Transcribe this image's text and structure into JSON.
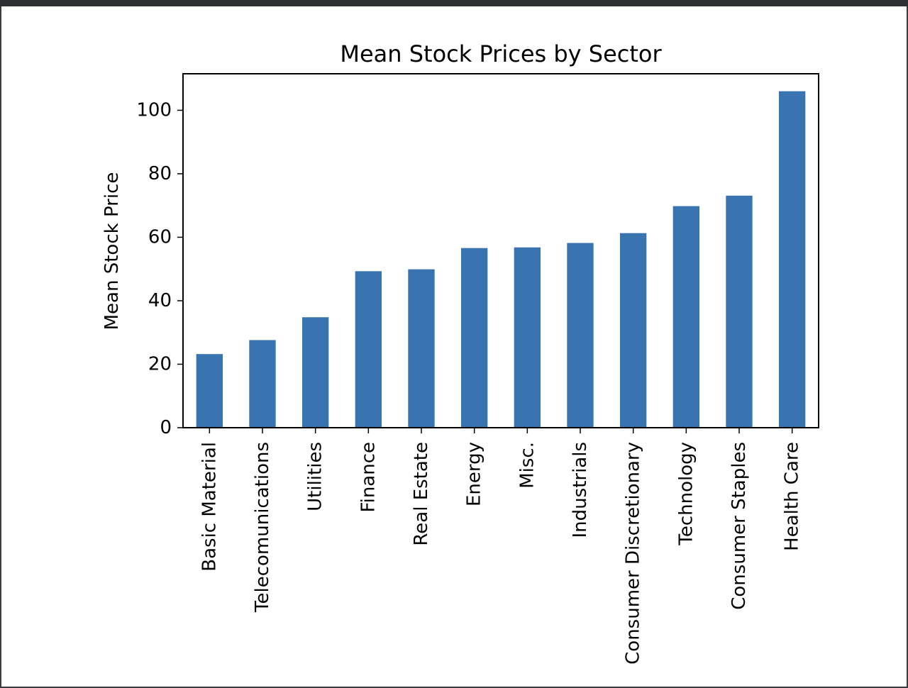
{
  "chart_data": {
    "type": "bar",
    "title": "Mean Stock Prices by Sector",
    "xlabel": "",
    "ylabel": "Mean Stock Price",
    "ylim": [
      0,
      111.5
    ],
    "yticks": [
      0,
      20,
      40,
      60,
      80,
      100
    ],
    "ytick_labels": [
      "0",
      "20",
      "40",
      "60",
      "80",
      "100"
    ],
    "categories": [
      "Basic Material",
      "Telecomunications",
      "Utilities",
      "Finance",
      "Real Estate",
      "Energy",
      "Misc.",
      "Industrials",
      "Consumer Discretionary",
      "Technology",
      "Consumer Staples",
      "Health Care"
    ],
    "values": [
      23.2,
      27.6,
      34.8,
      49.3,
      49.9,
      56.6,
      56.8,
      58.2,
      61.3,
      69.8,
      73.1,
      106.0
    ],
    "bar_color": "#3a74b0",
    "grid": false,
    "legend": "none"
  }
}
